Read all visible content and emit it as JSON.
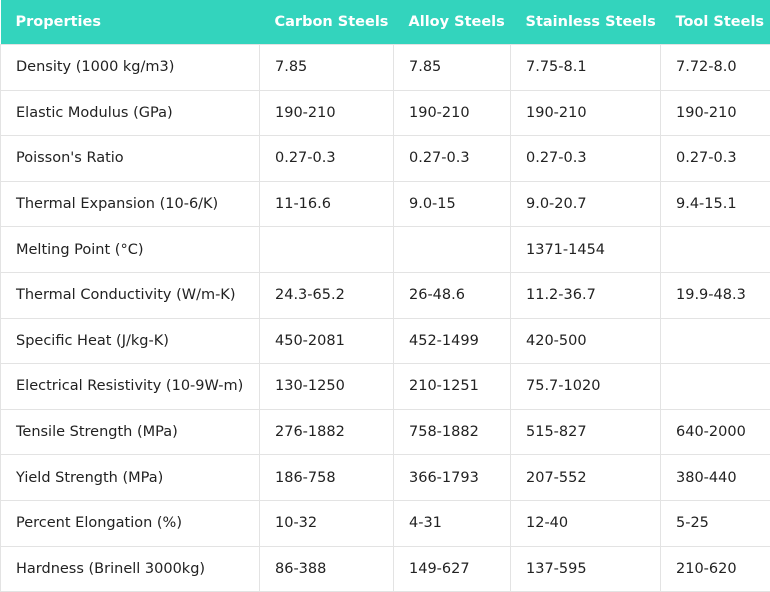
{
  "table": {
    "header": [
      "Properties",
      "Carbon Steels",
      "Alloy Steels",
      "Stainless Steels",
      "Tool Steels"
    ],
    "rows": [
      [
        "Density (1000 kg/m3)",
        "7.85",
        "7.85",
        "7.75-8.1",
        "7.72-8.0"
      ],
      [
        "Elastic Modulus (GPa)",
        "190-210",
        "190-210",
        "190-210",
        "190-210"
      ],
      [
        "Poisson's Ratio",
        "0.27-0.3",
        "0.27-0.3",
        "0.27-0.3",
        "0.27-0.3"
      ],
      [
        "Thermal Expansion (10-6/K)",
        "11-16.6",
        "9.0-15",
        "9.0-20.7",
        "9.4-15.1"
      ],
      [
        "Melting Point (°C)",
        null,
        null,
        "1371-1454",
        null
      ],
      [
        "Thermal Conductivity (W/m-K)",
        "24.3-65.2",
        "26-48.6",
        "11.2-36.7",
        "19.9-48.3"
      ],
      [
        "Specific Heat (J/kg-K)",
        "450-2081",
        "452-1499",
        "420-500",
        null
      ],
      [
        "Electrical Resistivity (10-9W-m)",
        "130-1250",
        "210-1251",
        "75.7-1020",
        null
      ],
      [
        "Tensile Strength (MPa)",
        "276-1882",
        "758-1882",
        "515-827",
        "640-2000"
      ],
      [
        "Yield Strength (MPa)",
        "186-758",
        "366-1793",
        "207-552",
        "380-440"
      ],
      [
        "Percent Elongation (%)",
        "10-32",
        "4-31",
        "12-40",
        "5-25"
      ],
      [
        "Hardness (Brinell 3000kg)",
        "86-388",
        "149-627",
        "137-595",
        "210-620"
      ]
    ]
  }
}
